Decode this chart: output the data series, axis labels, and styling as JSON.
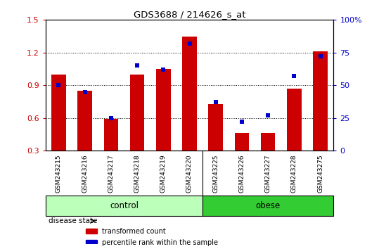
{
  "title": "GDS3688 / 214626_s_at",
  "samples": [
    "GSM243215",
    "GSM243216",
    "GSM243217",
    "GSM243218",
    "GSM243219",
    "GSM243220",
    "GSM243225",
    "GSM243226",
    "GSM243227",
    "GSM243228",
    "GSM243275"
  ],
  "transformed_count": [
    1.0,
    0.85,
    0.59,
    1.0,
    1.05,
    1.35,
    0.73,
    0.46,
    0.46,
    0.87,
    1.21
  ],
  "percentile_rank": [
    50,
    45,
    25,
    65,
    62,
    82,
    37,
    22,
    27,
    57,
    72
  ],
  "left_ylim": [
    0.3,
    1.5
  ],
  "left_yticks": [
    0.3,
    0.6,
    0.9,
    1.2,
    1.5
  ],
  "right_ylim": [
    0,
    100
  ],
  "right_yticks": [
    0,
    25,
    50,
    75,
    100
  ],
  "right_yticklabels": [
    "0",
    "25",
    "50",
    "75",
    "100%"
  ],
  "bar_color": "#cc0000",
  "dot_color": "#0000cc",
  "bar_width": 0.55,
  "dot_size": 18,
  "groups": [
    {
      "label": "control",
      "start": 0,
      "end": 5,
      "color": "#bbffbb"
    },
    {
      "label": "obese",
      "start": 6,
      "end": 10,
      "color": "#33cc33"
    }
  ],
  "disease_state_label": "disease state",
  "legend_entries": [
    {
      "label": "transformed count",
      "color": "#cc0000"
    },
    {
      "label": "percentile rank within the sample",
      "color": "#0000cc"
    }
  ],
  "tick_label_color_left": "#cc0000",
  "tick_label_color_right": "#0000cc",
  "plot_bg_color": "#ffffff",
  "xtick_bg_color": "#cccccc"
}
